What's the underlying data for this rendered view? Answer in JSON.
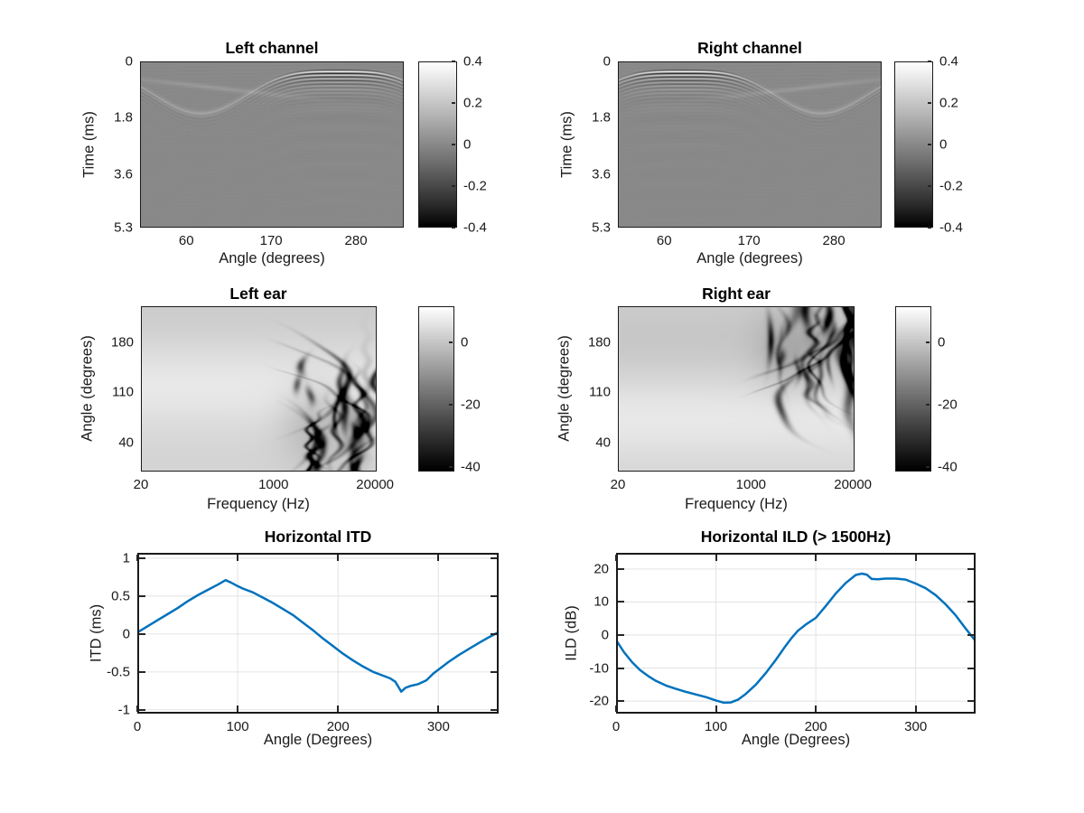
{
  "figure": {
    "background": "#ffffff",
    "axis_color": "#262626",
    "text_color": "#1a1a1a",
    "grid_color": "#e2e2e2",
    "line_color": "#0072bd"
  },
  "chart_data": [
    {
      "type": "heatmap",
      "title": "Left channel",
      "xlabel": "Angle (degrees)",
      "ylabel": "Time (ms)",
      "xlim": [
        0,
        342
      ],
      "ylim": [
        0,
        5.3
      ],
      "y_direction": "down",
      "xticks": [
        60,
        170,
        280
      ],
      "xtick_labels": [
        "60",
        "170",
        "280"
      ],
      "yticks": [
        0,
        1.8,
        3.6,
        5.3
      ],
      "ytick_labels": [
        "0",
        "1.8",
        "3.6",
        "5.3"
      ],
      "colorbar": {
        "range": [
          -0.4,
          0.4
        ],
        "ticks": [
          0.4,
          0.2,
          0,
          -0.2,
          -0.4
        ],
        "labels": [
          "0.4",
          "0.2",
          "0",
          "-0.2",
          "-0.4"
        ]
      },
      "pattern": {
        "kind": "impulse",
        "apex_angle": 258,
        "t_min": 0.3,
        "wavelength": 0.115,
        "decay": 0.3,
        "mirror": false,
        "cross_center": 95
      }
    },
    {
      "type": "heatmap",
      "title": "Right channel",
      "xlabel": "Angle (degrees)",
      "ylabel": "Time (ms)",
      "xlim": [
        0,
        342
      ],
      "ylim": [
        0,
        5.3
      ],
      "y_direction": "down",
      "xticks": [
        60,
        170,
        280
      ],
      "xtick_labels": [
        "60",
        "170",
        "280"
      ],
      "yticks": [
        0,
        1.8,
        3.6,
        5.3
      ],
      "ytick_labels": [
        "0",
        "1.8",
        "3.6",
        "5.3"
      ],
      "colorbar": {
        "range": [
          -0.4,
          0.4
        ],
        "ticks": [
          0.4,
          0.2,
          0,
          -0.2,
          -0.4
        ],
        "labels": [
          "0.4",
          "0.2",
          "0",
          "-0.2",
          "-0.4"
        ]
      },
      "pattern": {
        "kind": "impulse",
        "apex_angle": 84,
        "t_min": 0.3,
        "wavelength": 0.115,
        "decay": 0.3,
        "mirror": true,
        "cross_center": 95
      }
    },
    {
      "type": "heatmap",
      "title": "Left ear",
      "xlabel": "Frequency (Hz)",
      "ylabel": "Angle (degrees)",
      "xscale": "log",
      "xlim": [
        20,
        21000
      ],
      "ylim": [
        0,
        230
      ],
      "y_direction": "up",
      "xticks": [
        20,
        1000,
        20000
      ],
      "xtick_labels": [
        "20",
        "1000",
        "20000"
      ],
      "yticks": [
        180,
        110,
        40
      ],
      "ytick_labels": [
        "180",
        "110",
        "40"
      ],
      "colorbar": {
        "range": [
          -41.5,
          11.5
        ],
        "ticks": [
          0,
          -20,
          -40
        ],
        "labels": [
          "0",
          "-20",
          "-40"
        ]
      },
      "pattern": {
        "kind": "spectrum",
        "seed": 11,
        "notch_center": 65,
        "notch_spread": 55,
        "light_center": 120,
        "shadow_center": 225,
        "shadow_depth": 1.5
      }
    },
    {
      "type": "heatmap",
      "title": "Right ear",
      "xlabel": "Frequency (Hz)",
      "ylabel": "Angle (degrees)",
      "xscale": "log",
      "xlim": [
        20,
        21000
      ],
      "ylim": [
        0,
        230
      ],
      "y_direction": "up",
      "xticks": [
        20,
        1000,
        20000
      ],
      "xtick_labels": [
        "20",
        "1000",
        "20000"
      ],
      "yticks": [
        180,
        110,
        40
      ],
      "ytick_labels": [
        "180",
        "110",
        "40"
      ],
      "colorbar": {
        "range": [
          -41.5,
          11.5
        ],
        "ticks": [
          0,
          -20,
          -40
        ],
        "labels": [
          "0",
          "-20",
          "-40"
        ]
      },
      "pattern": {
        "kind": "spectrum",
        "seed": 29,
        "notch_center": 170,
        "notch_spread": 52,
        "light_center": 75,
        "shadow_center": 185,
        "shadow_depth": 2.6
      }
    },
    {
      "type": "line",
      "title": "Horizontal ITD",
      "xlabel": "Angle (Degrees)",
      "ylabel": "ITD (ms)",
      "xlim": [
        0,
        360
      ],
      "ylim": [
        -1.05,
        1.07
      ],
      "xticks": [
        0,
        100,
        200,
        300
      ],
      "xtick_labels": [
        "0",
        "100",
        "200",
        "300"
      ],
      "yticks": [
        1,
        0.5,
        0,
        -0.5,
        -1
      ],
      "ytick_labels": [
        "1",
        "0.5",
        "0",
        "-0.5",
        "-1"
      ],
      "grid": true,
      "x": [
        0,
        10,
        20,
        30,
        40,
        50,
        60,
        70,
        80,
        88,
        93,
        98,
        105,
        115,
        125,
        135,
        145,
        155,
        165,
        175,
        185,
        195,
        205,
        215,
        225,
        235,
        245,
        252,
        257,
        263,
        267,
        272,
        280,
        288,
        295,
        302,
        310,
        320,
        330,
        340,
        350,
        360
      ],
      "y": [
        0.02,
        0.1,
        0.18,
        0.26,
        0.34,
        0.43,
        0.51,
        0.58,
        0.65,
        0.71,
        0.68,
        0.645,
        0.6,
        0.55,
        0.48,
        0.41,
        0.33,
        0.25,
        0.15,
        0.05,
        -0.06,
        -0.16,
        -0.26,
        -0.35,
        -0.43,
        -0.5,
        -0.55,
        -0.585,
        -0.63,
        -0.76,
        -0.71,
        -0.685,
        -0.66,
        -0.61,
        -0.52,
        -0.45,
        -0.37,
        -0.28,
        -0.2,
        -0.12,
        -0.045,
        0.025
      ]
    },
    {
      "type": "line",
      "title": "Horizontal ILD (> 1500Hz)",
      "xlabel": "Angle (Degrees)",
      "ylabel": "ILD (dB)",
      "xlim": [
        0,
        360
      ],
      "ylim": [
        -23.8,
        24.9
      ],
      "xticks": [
        0,
        100,
        200,
        300
      ],
      "xtick_labels": [
        "0",
        "100",
        "200",
        "300"
      ],
      "yticks": [
        20,
        10,
        0,
        -10,
        -20
      ],
      "ytick_labels": [
        "20",
        "10",
        "0",
        "-10",
        "-20"
      ],
      "grid": true,
      "x": [
        0,
        8,
        16,
        24,
        32,
        40,
        50,
        60,
        70,
        80,
        90,
        100,
        108,
        115,
        122,
        130,
        140,
        150,
        160,
        170,
        176,
        182,
        190,
        200,
        210,
        220,
        230,
        240,
        246,
        251,
        256,
        262,
        270,
        280,
        290,
        300,
        310,
        320,
        330,
        340,
        350,
        360
      ],
      "y": [
        -1.5,
        -5.2,
        -8.2,
        -10.6,
        -12.4,
        -13.9,
        -15.3,
        -16.3,
        -17.2,
        -18.0,
        -18.8,
        -19.8,
        -20.5,
        -20.4,
        -19.6,
        -17.8,
        -15.0,
        -11.5,
        -7.5,
        -3.2,
        -0.8,
        1.3,
        3.2,
        5.2,
        8.8,
        12.6,
        15.8,
        18.2,
        18.6,
        18.3,
        17.0,
        16.9,
        17.1,
        17.1,
        16.8,
        15.6,
        14.2,
        12.1,
        9.3,
        6.0,
        2.0,
        -1.8
      ]
    }
  ]
}
